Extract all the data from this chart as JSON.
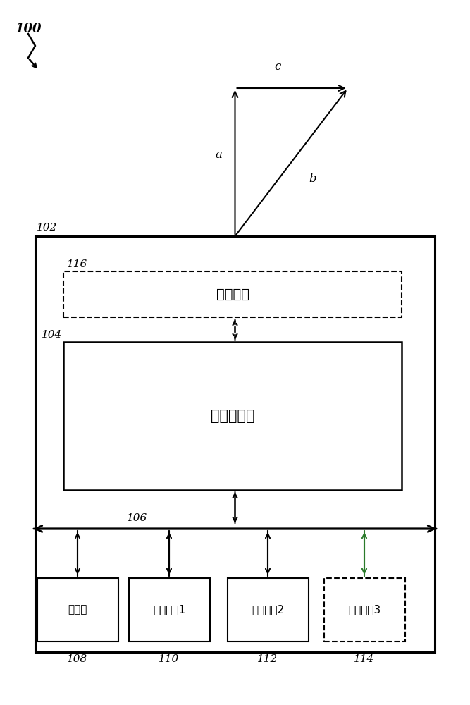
{
  "bg_color": "#ffffff",
  "line_color": "#000000",
  "green_arrow_color": "#2a7a2a",
  "fig_width": 6.67,
  "fig_height": 10.0,
  "label_100": "100",
  "label_102": "102",
  "label_104": "104",
  "label_106": "106",
  "label_108": "108",
  "label_110": "110",
  "label_112": "112",
  "label_114": "114",
  "label_116": "116",
  "label_a": "a",
  "label_b": "b",
  "label_c": "c",
  "text_qingjie": "清洁机构",
  "text_zhidongqi": "致动器系统",
  "text_kongzhiqi": "控制器",
  "text_sensor1": "传感器组1",
  "text_sensor2": "传感器组2",
  "text_sensor3": "传感器组3"
}
